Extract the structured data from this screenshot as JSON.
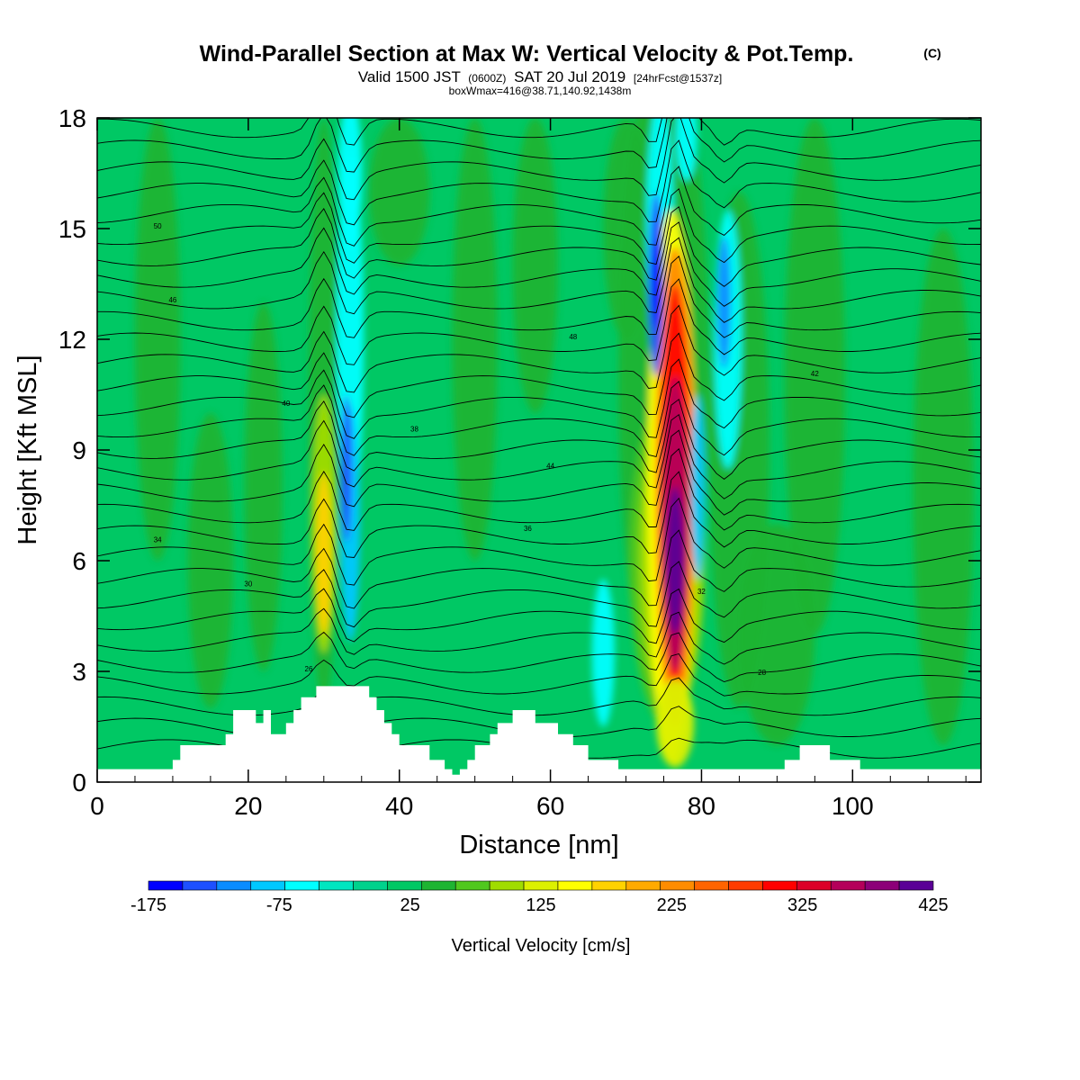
{
  "header": {
    "title": "Wind-Parallel Section at Max W: Vertical Velocity & Pot.Temp.",
    "copyright_mark": "(C)",
    "valid_prefix": "Valid 1500 JST",
    "valid_zulu": "(0600Z)",
    "valid_date": "SAT 20 Jul 2019",
    "forecast_info": "[24hrFcst@1537z]",
    "box_info": "boxWmax=416@38.71,140.92,1438m"
  },
  "chart_data": {
    "type": "heatmap",
    "xlabel": "Distance [nm]",
    "ylabel": "Height [Kft MSL]",
    "xlim": [
      0,
      117
    ],
    "ylim": [
      0,
      18
    ],
    "x_ticks": [
      "0",
      "20",
      "40",
      "60",
      "80",
      "100"
    ],
    "y_ticks": [
      "0",
      "3",
      "6",
      "9",
      "12",
      "15",
      "18"
    ],
    "grid": false,
    "colorbar": {
      "label": "Vertical Velocity [cm/s]",
      "tick_labels": [
        "-175",
        "-75",
        "25",
        "125",
        "225",
        "325",
        "425"
      ],
      "min": -175,
      "max": 425,
      "colors": [
        "#0000ff",
        "#1e50ff",
        "#0a8cff",
        "#00c8ff",
        "#00ffff",
        "#00e6c0",
        "#00d28c",
        "#00c864",
        "#1eb432",
        "#50c81e",
        "#a0dc00",
        "#dcf000",
        "#ffff00",
        "#ffd200",
        "#ffaa00",
        "#ff8c00",
        "#ff6400",
        "#ff3c00",
        "#ff0000",
        "#dc0028",
        "#b4005a",
        "#8c0078",
        "#5a0096"
      ]
    },
    "potential_temperature_contours": {
      "name": "Pot.Temp.",
      "labels": [
        "26",
        "28",
        "30",
        "32",
        "34",
        "36",
        "38",
        "40",
        "42",
        "44",
        "46",
        "48",
        "50"
      ]
    },
    "updraft_cores": [
      {
        "x_nm": 30,
        "z_kft": 6.5,
        "w_cm_s": 180
      },
      {
        "x_nm": 76,
        "z_kft": 6.5,
        "w_cm_s": 416
      }
    ],
    "downdraft_cores": [
      {
        "x_nm": 33.5,
        "z_kft": 7,
        "w_cm_s": -100
      },
      {
        "x_nm": 74.5,
        "z_kft": 13,
        "w_cm_s": -175
      },
      {
        "x_nm": 83,
        "z_kft": 13,
        "w_cm_s": -125
      }
    ],
    "terrain_kft": [
      [
        0,
        0.35
      ],
      [
        10,
        0.35
      ],
      [
        10,
        0.6
      ],
      [
        11,
        0.6
      ],
      [
        11,
        1
      ],
      [
        17,
        1
      ],
      [
        17,
        1.3
      ],
      [
        18,
        1.3
      ],
      [
        18,
        1.95
      ],
      [
        21,
        1.95
      ],
      [
        21,
        1.6
      ],
      [
        22,
        1.6
      ],
      [
        22,
        1.95
      ],
      [
        23,
        1.95
      ],
      [
        23,
        1.3
      ],
      [
        25,
        1.3
      ],
      [
        25,
        1.6
      ],
      [
        26,
        1.6
      ],
      [
        26,
        1.95
      ],
      [
        27,
        1.95
      ],
      [
        27,
        2.3
      ],
      [
        29,
        2.3
      ],
      [
        29,
        2.6
      ],
      [
        33,
        2.6
      ],
      [
        33,
        2.6
      ],
      [
        36,
        2.6
      ],
      [
        36,
        2.3
      ],
      [
        37,
        2.3
      ],
      [
        37,
        1.95
      ],
      [
        38,
        1.95
      ],
      [
        38,
        1.6
      ],
      [
        39,
        1.6
      ],
      [
        39,
        1.3
      ],
      [
        40,
        1.3
      ],
      [
        40,
        1
      ],
      [
        44,
        1
      ],
      [
        44,
        0.6
      ],
      [
        46,
        0.6
      ],
      [
        46,
        0.35
      ],
      [
        47,
        0.35
      ],
      [
        47,
        0.2
      ],
      [
        48,
        0.2
      ],
      [
        48,
        0.35
      ],
      [
        49,
        0.35
      ],
      [
        49,
        0.6
      ],
      [
        50,
        0.6
      ],
      [
        50,
        1
      ],
      [
        52,
        1
      ],
      [
        52,
        1.3
      ],
      [
        53,
        1.3
      ],
      [
        53,
        1.6
      ],
      [
        55,
        1.6
      ],
      [
        55,
        1.95
      ],
      [
        58,
        1.95
      ],
      [
        58,
        1.6
      ],
      [
        61,
        1.6
      ],
      [
        61,
        1.3
      ],
      [
        63,
        1.3
      ],
      [
        63,
        1
      ],
      [
        65,
        1
      ],
      [
        65,
        0.6
      ],
      [
        69,
        0.6
      ],
      [
        69,
        0.35
      ],
      [
        84,
        0.35
      ],
      [
        84,
        0.35
      ],
      [
        91,
        0.35
      ],
      [
        91,
        0.6
      ],
      [
        93,
        0.6
      ],
      [
        93,
        1
      ],
      [
        97,
        1
      ],
      [
        97,
        0.6
      ],
      [
        101,
        0.6
      ],
      [
        101,
        0.35
      ],
      [
        117,
        0.35
      ]
    ]
  }
}
